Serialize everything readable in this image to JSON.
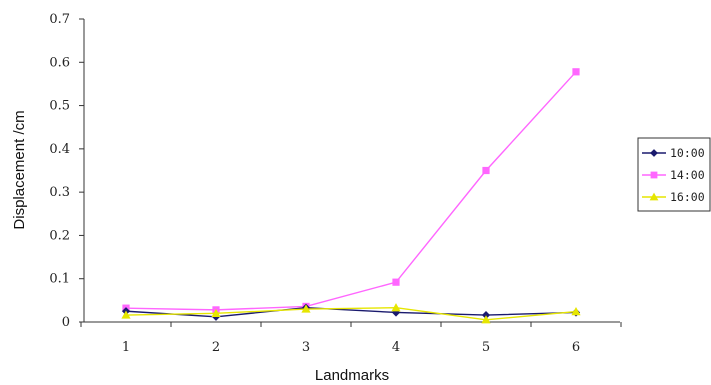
{
  "chart_data": {
    "type": "line",
    "title": "",
    "xlabel": "Landmarks",
    "ylabel": "Displacement /cm",
    "categories": [
      "1",
      "2",
      "3",
      "4",
      "5",
      "6"
    ],
    "y_ticks": [
      "0",
      "0.1",
      "0.2",
      "0.3",
      "0.4",
      "0.5",
      "0.6",
      "0.7"
    ],
    "ylim": [
      0,
      0.7
    ],
    "grid": false,
    "legend_position": "right",
    "series": [
      {
        "name": "10:00",
        "color": "#1a1a6e",
        "marker": "diamond",
        "values": [
          0.025,
          0.012,
          0.033,
          0.022,
          0.016,
          0.022
        ]
      },
      {
        "name": "14:00",
        "color": "#ff66ff",
        "marker": "square",
        "values": [
          0.032,
          0.028,
          0.036,
          0.092,
          0.35,
          0.578
        ]
      },
      {
        "name": "16:00",
        "color": "#e6e600",
        "marker": "triangle",
        "values": [
          0.016,
          0.02,
          0.03,
          0.033,
          0.005,
          0.024
        ]
      }
    ]
  }
}
